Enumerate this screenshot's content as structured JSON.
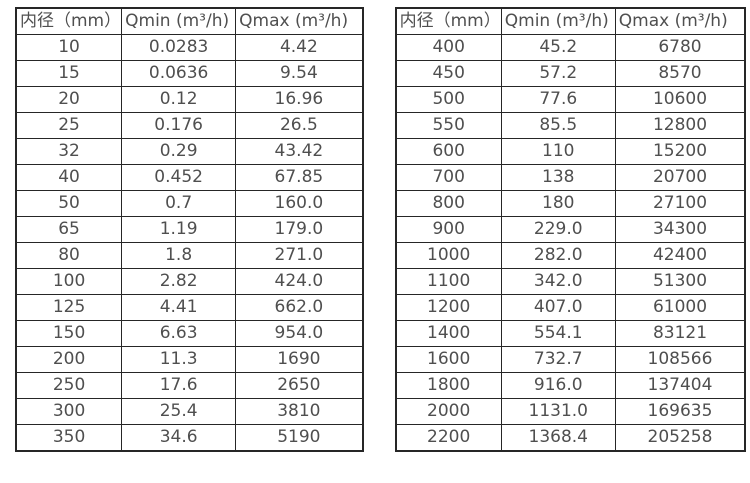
{
  "page": {
    "background_color": "#ffffff",
    "text_color": "#4f4f4f",
    "border_color": "#262626"
  },
  "chart_data": [
    {
      "type": "table",
      "columns": [
        "内径（mm）",
        "Qmin (m³/h)",
        "Qmax (m³/h)"
      ],
      "rows": [
        [
          "10",
          "0.0283",
          "4.42"
        ],
        [
          "15",
          "0.0636",
          "9.54"
        ],
        [
          "20",
          "0.12",
          "16.96"
        ],
        [
          "25",
          "0.176",
          "26.5"
        ],
        [
          "32",
          "0.29",
          "43.42"
        ],
        [
          "40",
          "0.452",
          "67.85"
        ],
        [
          "50",
          "0.7",
          "160.0"
        ],
        [
          "65",
          "1.19",
          "179.0"
        ],
        [
          "80",
          "1.8",
          "271.0"
        ],
        [
          "100",
          "2.82",
          "424.0"
        ],
        [
          "125",
          "4.41",
          "662.0"
        ],
        [
          "150",
          "6.63",
          "954.0"
        ],
        [
          "200",
          "11.3",
          "1690"
        ],
        [
          "250",
          "17.6",
          "2650"
        ],
        [
          "300",
          "25.4",
          "3810"
        ],
        [
          "350",
          "34.6",
          "5190"
        ]
      ]
    },
    {
      "type": "table",
      "columns": [
        "内径（mm）",
        "Qmin (m³/h)",
        "Qmax (m³/h)"
      ],
      "rows": [
        [
          "400",
          "45.2",
          "6780"
        ],
        [
          "450",
          "57.2",
          "8570"
        ],
        [
          "500",
          "77.6",
          "10600"
        ],
        [
          "550",
          "85.5",
          "12800"
        ],
        [
          "600",
          "110",
          "15200"
        ],
        [
          "700",
          "138",
          "20700"
        ],
        [
          "800",
          "180",
          "27100"
        ],
        [
          "900",
          "229.0",
          "34300"
        ],
        [
          "1000",
          "282.0",
          "42400"
        ],
        [
          "1100",
          "342.0",
          "51300"
        ],
        [
          "1200",
          "407.0",
          "61000"
        ],
        [
          "1400",
          "554.1",
          "83121"
        ],
        [
          "1600",
          "732.7",
          "108566"
        ],
        [
          "1800",
          "916.0",
          "137404"
        ],
        [
          "2000",
          "1131.0",
          "169635"
        ],
        [
          "2200",
          "1368.4",
          "205258"
        ]
      ]
    }
  ]
}
